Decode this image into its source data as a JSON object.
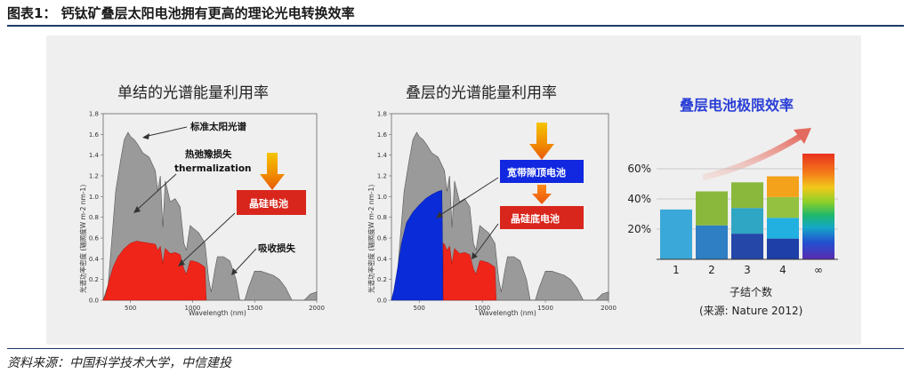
{
  "header": {
    "title": "图表1：  钙钛矿叠层太阳电池拥有更高的理论光电转换效率"
  },
  "footer": {
    "source": "资料来源：中国科学技术大学，中信建投"
  },
  "colors": {
    "rule": "#1f3a68",
    "red_box": "#d9261c",
    "blue_box": "#1128e0",
    "spectrum_gray": "#9a9a9a",
    "red_fill": "#f0251a",
    "blue_fill": "#0a2bd8",
    "right_title": "#2a3fd6"
  },
  "chart_data": [
    {
      "type": "area",
      "title": "单结的光谱能量利用率",
      "xlabel": "Wavelength (nm)",
      "ylabel": "光谱功率密度 (辐照度W m-2 nm-1)",
      "xlim": [
        280,
        2000
      ],
      "ylim": [
        0,
        1.8
      ],
      "xticks": [
        "500",
        "1000",
        "1500",
        "2000"
      ],
      "yticks": [
        "0.0",
        "0.2",
        "0.4",
        "0.6",
        "0.8",
        "1.0",
        "1.2",
        "1.4",
        "1.6",
        "1.8"
      ],
      "series": [
        {
          "name": "标准太阳光谱",
          "x": [
            280,
            320,
            350,
            380,
            420,
            450,
            480,
            500,
            530,
            560,
            600,
            650,
            700,
            720,
            740,
            760,
            780,
            820,
            860,
            900,
            930,
            950,
            980,
            1000,
            1050,
            1100,
            1130,
            1150,
            1180,
            1200,
            1250,
            1300,
            1350,
            1380,
            1420,
            1450,
            1500,
            1550,
            1600,
            1650,
            1700,
            1750,
            1800,
            1850,
            1900,
            1950,
            2000
          ],
          "y": [
            0.0,
            0.15,
            0.6,
            1.05,
            1.35,
            1.55,
            1.62,
            1.58,
            1.55,
            1.5,
            1.42,
            1.38,
            1.25,
            1.05,
            1.2,
            0.7,
            1.15,
            0.95,
            0.98,
            0.9,
            0.55,
            0.48,
            0.72,
            0.7,
            0.65,
            0.55,
            0.2,
            0.08,
            0.3,
            0.42,
            0.42,
            0.38,
            0.2,
            0.0,
            0.0,
            0.12,
            0.28,
            0.28,
            0.26,
            0.24,
            0.2,
            0.12,
            0.0,
            0.0,
            0.0,
            0.06,
            0.08
          ]
        },
        {
          "name": "晶硅电池",
          "x": [
            280,
            300,
            330,
            360,
            400,
            450,
            500,
            550,
            600,
            650,
            700,
            720,
            740,
            760,
            780,
            820,
            860,
            900,
            930,
            950,
            980,
            1000,
            1050,
            1100,
            1110
          ],
          "y": [
            0.0,
            0.05,
            0.2,
            0.32,
            0.42,
            0.5,
            0.55,
            0.57,
            0.56,
            0.55,
            0.54,
            0.48,
            0.52,
            0.35,
            0.5,
            0.45,
            0.46,
            0.44,
            0.3,
            0.25,
            0.38,
            0.38,
            0.36,
            0.32,
            0.0
          ]
        }
      ],
      "annotations": [
        "标准太阳光谱",
        "热弛豫损失",
        "thermalization",
        "晶硅电池",
        "吸收损失"
      ]
    },
    {
      "type": "area",
      "title": "叠层的光谱能量利用率",
      "xlabel": "Wavelength (nm)",
      "ylabel": "光谱功率密度 (辐照度W m-2 nm-1)",
      "xlim": [
        280,
        2000
      ],
      "ylim": [
        0,
        1.8
      ],
      "xticks": [
        "500",
        "1000",
        "1500",
        "2000"
      ],
      "yticks": [
        "0.0",
        "0.2",
        "0.4",
        "0.6",
        "0.8",
        "1.0",
        "1.2",
        "1.4",
        "1.6",
        "1.8"
      ],
      "series": [
        {
          "name": "标准太阳光谱",
          "x": [
            280,
            320,
            350,
            380,
            420,
            450,
            480,
            500,
            530,
            560,
            600,
            650,
            700,
            720,
            740,
            760,
            780,
            820,
            860,
            900,
            930,
            950,
            980,
            1000,
            1050,
            1100,
            1130,
            1150,
            1180,
            1200,
            1250,
            1300,
            1350,
            1380,
            1420,
            1450,
            1500,
            1550,
            1600,
            1650,
            1700,
            1750,
            1800,
            1850,
            1900,
            1950,
            2000
          ],
          "y": [
            0.0,
            0.15,
            0.6,
            1.05,
            1.35,
            1.55,
            1.62,
            1.58,
            1.55,
            1.5,
            1.42,
            1.38,
            1.25,
            1.05,
            1.2,
            0.7,
            1.15,
            0.95,
            0.98,
            0.9,
            0.55,
            0.48,
            0.72,
            0.7,
            0.65,
            0.55,
            0.2,
            0.08,
            0.3,
            0.42,
            0.42,
            0.38,
            0.2,
            0.0,
            0.0,
            0.12,
            0.28,
            0.28,
            0.26,
            0.24,
            0.2,
            0.12,
            0.0,
            0.0,
            0.0,
            0.06,
            0.08
          ]
        },
        {
          "name": "宽带隙顶电池",
          "x": [
            280,
            300,
            330,
            360,
            400,
            450,
            500,
            550,
            600,
            650,
            680,
            690
          ],
          "y": [
            0.0,
            0.1,
            0.32,
            0.55,
            0.75,
            0.85,
            0.92,
            0.98,
            1.02,
            1.05,
            1.06,
            0.0
          ]
        },
        {
          "name": "晶硅底电池",
          "x": [
            690,
            700,
            720,
            740,
            760,
            780,
            820,
            860,
            900,
            930,
            950,
            980,
            1000,
            1050,
            1100,
            1110
          ],
          "y": [
            0.55,
            0.54,
            0.48,
            0.52,
            0.35,
            0.5,
            0.45,
            0.46,
            0.44,
            0.3,
            0.25,
            0.38,
            0.38,
            0.36,
            0.32,
            0.0
          ]
        }
      ],
      "annotations": [
        "宽带隙顶电池",
        "晶硅底电池"
      ]
    },
    {
      "type": "bar",
      "title": "叠层电池极限效率",
      "xlabel": "子结个数",
      "note": "(来源: Nature 2012)",
      "categories": [
        "1",
        "2",
        "3",
        "4",
        "∞"
      ],
      "yticks": [
        "20%",
        "40%",
        "60%"
      ],
      "ylim": [
        0,
        75
      ],
      "values": [
        33,
        45,
        51,
        55,
        70
      ]
    }
  ]
}
